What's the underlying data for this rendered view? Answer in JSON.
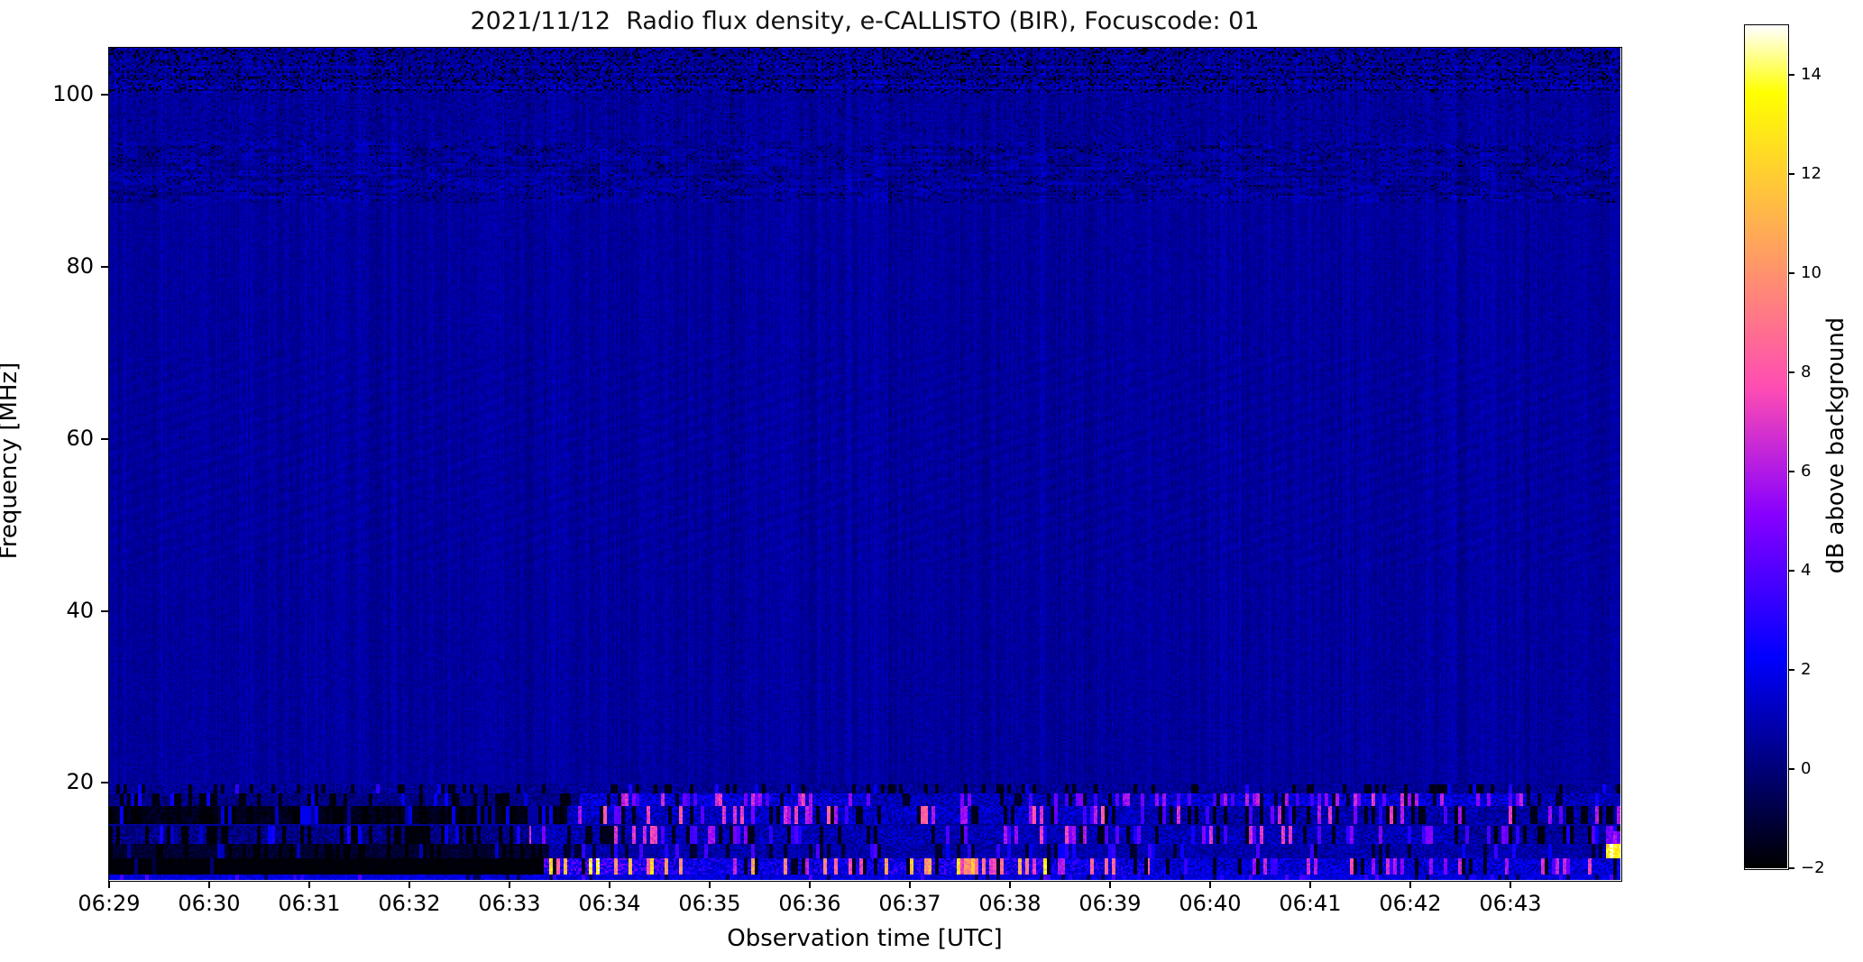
{
  "chart_data": {
    "type": "heatmap",
    "subtype": "radio-spectrogram",
    "title": "2021/11/12  Radio flux density, e-CALLISTO (BIR), Focuscode: 01",
    "xlabel": "Observation time [UTC]",
    "ylabel": "Frequency [MHz]",
    "colorbar_label": "dB above background",
    "colormap": "gnuplot2",
    "vmin": -2,
    "vmax": 15,
    "grid": false,
    "legend": "none",
    "x_axis": {
      "start_minutes": 29.0,
      "end_minutes": 44.1,
      "hour_prefix": "06",
      "ticks": [
        {
          "label": "06:29",
          "minute": 29
        },
        {
          "label": "06:30",
          "minute": 30
        },
        {
          "label": "06:31",
          "minute": 31
        },
        {
          "label": "06:32",
          "minute": 32
        },
        {
          "label": "06:33",
          "minute": 33
        },
        {
          "label": "06:34",
          "minute": 34
        },
        {
          "label": "06:35",
          "minute": 35
        },
        {
          "label": "06:36",
          "minute": 36
        },
        {
          "label": "06:37",
          "minute": 37
        },
        {
          "label": "06:38",
          "minute": 38
        },
        {
          "label": "06:39",
          "minute": 39
        },
        {
          "label": "06:40",
          "minute": 40
        },
        {
          "label": "06:41",
          "minute": 41
        },
        {
          "label": "06:42",
          "minute": 42
        },
        {
          "label": "06:43",
          "minute": 43
        }
      ]
    },
    "y_axis": {
      "freq_top_mhz": 105.5,
      "freq_bottom_mhz": 8.7,
      "ticks": [
        {
          "label": "100",
          "mhz": 100
        },
        {
          "label": "80",
          "mhz": 80
        },
        {
          "label": "60",
          "mhz": 60
        },
        {
          "label": "40",
          "mhz": 40
        },
        {
          "label": "20",
          "mhz": 20
        }
      ]
    },
    "colorbar": {
      "ticks": [
        {
          "label": "14",
          "value": 14
        },
        {
          "label": "12",
          "value": 12
        },
        {
          "label": "10",
          "value": 10
        },
        {
          "label": "8",
          "value": 8
        },
        {
          "label": "6",
          "value": 6
        },
        {
          "label": "4",
          "value": 4
        },
        {
          "label": "2",
          "value": 2
        },
        {
          "label": "0",
          "value": 0
        },
        {
          "label": "−2",
          "value": -2
        }
      ]
    },
    "background_level_db": 0.62,
    "upper_bands": {
      "top_noise_fmin": 100.2,
      "mid_noise_fmin": 94.5,
      "fm_mottle_fmin": 87.5,
      "ripple_fmax": 70,
      "ripple_fmin": 45
    },
    "features": [
      {
        "name": "right-edge-white-burst",
        "f": [
          11.2,
          12.9
        ],
        "t": [
          43.95,
          44.1
        ],
        "base": 13.0,
        "noise": 1.2,
        "p_hot": 0.6,
        "hot": [
          13,
          15
        ],
        "p_black": 0.0,
        "black": 0
      },
      {
        "name": "right-edge-purple-spot",
        "f": [
          12.9,
          14.3
        ],
        "t": [
          43.95,
          44.1
        ],
        "base": 4.5,
        "noise": 1.0,
        "p_hot": 0.25,
        "hot": [
          5,
          6.5
        ],
        "p_black": 0.0,
        "black": 0
      },
      {
        "name": "19mhz-speckle-band",
        "f": [
          18.8,
          19.9
        ],
        "t": [
          29.0,
          44.1
        ],
        "base": 0.5,
        "noise": 0.8,
        "p_hot": 0.03,
        "hot": [
          2,
          3.5
        ],
        "p_black": 0.18,
        "black": -1.6
      },
      {
        "name": "18mhz-quiet-left",
        "f": [
          17.3,
          18.8
        ],
        "t": [
          29.0,
          33.7
        ],
        "base": 0.2,
        "noise": 0.7,
        "p_hot": 0.06,
        "hot": [
          1.5,
          2.8
        ],
        "p_black": 0.3,
        "black": -1.7
      },
      {
        "name": "18mhz-active-1",
        "f": [
          17.3,
          18.8
        ],
        "t": [
          33.7,
          36.6
        ],
        "base": 1.6,
        "noise": 1.2,
        "p_hot": 0.22,
        "hot": [
          3.5,
          7.5
        ],
        "p_black": 0.05,
        "black": -1.2
      },
      {
        "name": "18mhz-dim-mid",
        "f": [
          17.3,
          18.8
        ],
        "t": [
          36.6,
          39.4
        ],
        "base": 1.0,
        "noise": 1.0,
        "p_hot": 0.1,
        "hot": [
          3,
          6
        ],
        "p_black": 0.12,
        "black": -1.3
      },
      {
        "name": "18mhz-active-2",
        "f": [
          17.3,
          18.8
        ],
        "t": [
          39.4,
          43.2
        ],
        "base": 1.6,
        "noise": 1.2,
        "p_hot": 0.25,
        "hot": [
          3.5,
          7
        ],
        "p_black": 0.06,
        "black": -1.2
      },
      {
        "name": "18mhz-end",
        "f": [
          17.3,
          18.8
        ],
        "t": [
          43.2,
          44.1
        ],
        "base": 1.0,
        "noise": 0.9,
        "p_hot": 0.06,
        "hot": [
          2.5,
          4
        ],
        "p_black": 0.1,
        "black": -1.2
      },
      {
        "name": "16mhz-black-left",
        "f": [
          15.3,
          17.3
        ],
        "t": [
          29.0,
          33.6
        ],
        "base": -1.5,
        "noise": 0.5,
        "p_hot": 0.22,
        "hot": [
          0.5,
          2.5
        ],
        "p_black": 0.3,
        "black": -1.9
      },
      {
        "name": "16mhz-magenta-mid",
        "f": [
          15.3,
          17.3
        ],
        "t": [
          33.6,
          39.3
        ],
        "base": 1.2,
        "noise": 1.1,
        "p_hot": 0.2,
        "hot": [
          3.5,
          8.5
        ],
        "p_black": 0.15,
        "black": -1.5
      },
      {
        "name": "16mhz-magenta-right",
        "f": [
          15.3,
          17.3
        ],
        "t": [
          39.3,
          44.1
        ],
        "base": 0.8,
        "noise": 1.0,
        "p_hot": 0.15,
        "hot": [
          3,
          7
        ],
        "p_black": 0.22,
        "black": -1.6
      },
      {
        "name": "14mhz-speckle-left",
        "f": [
          12.8,
          14.9
        ],
        "t": [
          29.0,
          33.2
        ],
        "base": 0.2,
        "noise": 0.9,
        "p_hot": 0.08,
        "hot": [
          1.5,
          3
        ],
        "p_black": 0.38,
        "black": -1.8
      },
      {
        "name": "14mhz-speckle-mid",
        "f": [
          12.8,
          14.9
        ],
        "t": [
          33.2,
          42.5
        ],
        "base": 1.0,
        "noise": 1.0,
        "p_hot": 0.18,
        "hot": [
          2.5,
          7.5
        ],
        "p_black": 0.14,
        "black": -1.5
      },
      {
        "name": "14mhz-speckle-right",
        "f": [
          12.8,
          14.9
        ],
        "t": [
          42.5,
          44.1
        ],
        "base": 0.5,
        "noise": 0.9,
        "p_hot": 0.1,
        "hot": [
          2,
          5
        ],
        "p_black": 0.3,
        "black": -1.7
      },
      {
        "name": "12mhz-dark-gap-left",
        "f": [
          11.2,
          12.8
        ],
        "t": [
          29.0,
          33.4
        ],
        "base": -1.2,
        "noise": 0.5,
        "p_hot": 0.06,
        "hot": [
          0.5,
          1.5
        ],
        "p_black": 0.25,
        "black": -1.9
      },
      {
        "name": "12mhz-dim-right",
        "f": [
          11.2,
          12.8
        ],
        "t": [
          33.4,
          44.1
        ],
        "base": 0.8,
        "noise": 0.8,
        "p_hot": 0.1,
        "hot": [
          2,
          4
        ],
        "p_black": 0.1,
        "black": -1.2
      },
      {
        "name": "10mhz-solid-black",
        "f": [
          9.4,
          11.2
        ],
        "t": [
          29.0,
          33.35
        ],
        "base": -1.85,
        "noise": 0.15,
        "p_hot": 0.01,
        "hot": [
          -1,
          0
        ],
        "p_black": 0.0,
        "black": -1.9
      },
      {
        "name": "10mhz-burst-hot-1",
        "f": [
          9.4,
          11.2
        ],
        "t": [
          33.35,
          34.55
        ],
        "base": 3.0,
        "noise": 2.0,
        "p_hot": 0.3,
        "hot": [
          8,
          14.2
        ],
        "p_black": 0.08,
        "black": -1.5
      },
      {
        "name": "10mhz-burst-mid",
        "f": [
          9.4,
          11.2
        ],
        "t": [
          34.55,
          36.8
        ],
        "base": 2.0,
        "noise": 1.5,
        "p_hot": 0.15,
        "hot": [
          6,
          11
        ],
        "p_black": 0.12,
        "black": -1.4
      },
      {
        "name": "10mhz-burst-hot-2",
        "f": [
          9.4,
          11.2
        ],
        "t": [
          36.8,
          38.4
        ],
        "base": 2.5,
        "noise": 1.8,
        "p_hot": 0.28,
        "hot": [
          7,
          13.5
        ],
        "p_black": 0.08,
        "black": -1.4
      },
      {
        "name": "10mhz-burst-fade",
        "f": [
          9.4,
          11.2
        ],
        "t": [
          38.4,
          39.4
        ],
        "base": 2.0,
        "noise": 1.5,
        "p_hot": 0.15,
        "hot": [
          5,
          10
        ],
        "p_black": 0.1,
        "black": -1.4
      },
      {
        "name": "10mhz-speckle-right",
        "f": [
          9.4,
          11.2
        ],
        "t": [
          39.4,
          44.1
        ],
        "base": 1.5,
        "noise": 1.2,
        "p_hot": 0.18,
        "hot": [
          3,
          8
        ],
        "p_black": 0.12,
        "black": -1.5
      },
      {
        "name": "9mhz-bottom-row",
        "f": [
          8.7,
          9.4
        ],
        "t": [
          29.0,
          44.1
        ],
        "base": 1.7,
        "noise": 0.8,
        "p_hot": 0.1,
        "hot": [
          2.5,
          4
        ],
        "p_black": 0.05,
        "black": -0.5
      }
    ],
    "colors": {
      "figure_background": "#ffffff",
      "axis_color": "#000000",
      "text_color": "#111111",
      "spectrogram_background": "#0a0aa0"
    }
  }
}
